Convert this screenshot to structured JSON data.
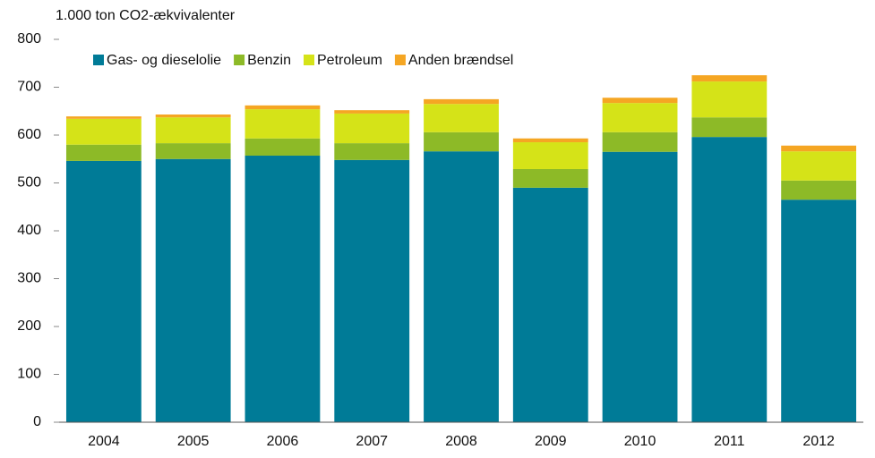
{
  "chart_data": {
    "type": "stacked_bar",
    "y_axis_label": "1.000 ton CO2-ækvivalenter",
    "categories": [
      "2004",
      "2005",
      "2006",
      "2007",
      "2008",
      "2009",
      "2010",
      "2011",
      "2012"
    ],
    "series": [
      {
        "name": "Gas- og dieselolie",
        "color": "#007b97",
        "values": [
          546,
          550,
          557,
          548,
          566,
          490,
          565,
          596,
          465
        ]
      },
      {
        "name": "Benzin",
        "color": "#8dba27",
        "values": [
          34,
          33,
          36,
          35,
          40,
          39,
          41,
          41,
          40
        ]
      },
      {
        "name": "Petroleum",
        "color": "#d5e318",
        "values": [
          54,
          54,
          61,
          62,
          59,
          56,
          61,
          75,
          61
        ]
      },
      {
        "name": "Anden brændsel",
        "color": "#f5a623",
        "values": [
          5,
          6,
          8,
          7,
          10,
          8,
          11,
          13,
          12
        ]
      }
    ],
    "ylim": [
      0,
      800
    ],
    "yticks": [
      0,
      100,
      200,
      300,
      400,
      500,
      600,
      700,
      800
    ],
    "grid": false,
    "legend": "top-left"
  }
}
